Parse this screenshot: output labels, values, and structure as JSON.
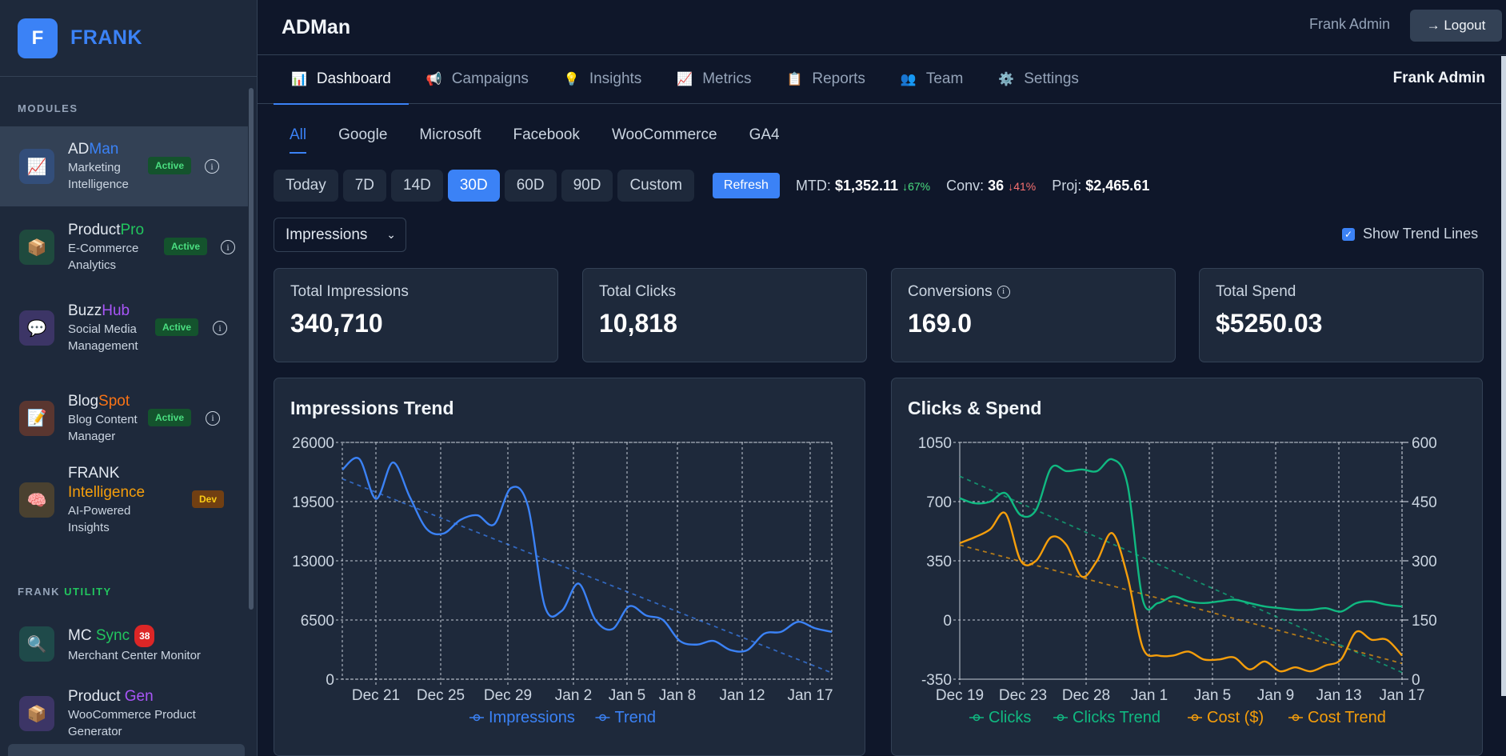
{
  "brand": {
    "logo_letter": "F",
    "name": "FRANK"
  },
  "sidebar": {
    "modules_label": "MODULES",
    "utility_label_a": "FRANK",
    "utility_label_b": "UTILITY",
    "modules": [
      {
        "title_a": "AD",
        "title_b": "Man",
        "title_b_color": "#3b82f6",
        "desc": "Marketing Intelligence",
        "badge": "Active",
        "icon": "chart-icon",
        "glyph": "📈",
        "icon_bg": "#334e7a"
      },
      {
        "title_a": "Product",
        "title_b": "Pro",
        "title_b_color": "#22c55e",
        "desc": "E-Commerce Analytics",
        "badge": "Active",
        "icon": "package-icon",
        "glyph": "📦",
        "icon_bg": "#1f4a3e"
      },
      {
        "title_a": "Buzz",
        "title_b": "Hub",
        "title_b_color": "#a855f7",
        "desc": "Social Media Management",
        "badge": "Active",
        "icon": "speech-bubble-icon",
        "glyph": "💬",
        "icon_bg": "#3c3566"
      },
      {
        "title_a": "Blog",
        "title_b": "Spot",
        "title_b_color": "#f97316",
        "desc": "Blog Content Manager",
        "badge": "Active",
        "icon": "document-icon",
        "glyph": "📝",
        "icon_bg": "#5a3630"
      },
      {
        "title_a": "FRANK",
        "title_b": "Intelligence",
        "title_b_color": "#f59e0b",
        "desc": "AI-Powered Insights",
        "badge": "Dev",
        "icon": "brain-icon",
        "glyph": "🧠",
        "icon_bg": "#4a4130"
      }
    ],
    "utilities": [
      {
        "title_a": "MC ",
        "title_b": "Sync",
        "title_b_color": "#22c55e",
        "count": "38",
        "desc": "Merchant Center Monitor",
        "icon": "magnifier-icon",
        "glyph": "🔍",
        "icon_bg": "#1f4a4a"
      },
      {
        "title_a": "Product ",
        "title_b": "Gen",
        "title_b_color": "#a855f7",
        "desc": "WooCommerce Product Generator",
        "icon": "package-icon",
        "glyph": "📦",
        "icon_bg": "#3c3566"
      }
    ]
  },
  "header": {
    "title": "ADMan",
    "user": "Frank Admin",
    "logout_label": "→ Logout"
  },
  "nav": {
    "tabs": [
      {
        "label": "Dashboard",
        "glyph": "📊"
      },
      {
        "label": "Campaigns",
        "glyph": "📢"
      },
      {
        "label": "Insights",
        "glyph": "💡"
      },
      {
        "label": "Metrics",
        "glyph": "📈"
      },
      {
        "label": "Reports",
        "glyph": "📋"
      },
      {
        "label": "Team",
        "glyph": "👥"
      },
      {
        "label": "Settings",
        "glyph": "⚙️"
      }
    ],
    "user": "Frank Admin"
  },
  "sources": [
    "All",
    "Google",
    "Microsoft",
    "Facebook",
    "WooCommerce",
    "GA4"
  ],
  "ranges": [
    "Today",
    "7D",
    "14D",
    "30D",
    "60D",
    "90D",
    "Custom"
  ],
  "selected_range": "30D",
  "refresh_label": "Refresh",
  "stats": {
    "mtd_label": "MTD:",
    "mtd_value": "$1,352.11",
    "mtd_change": "↓67%",
    "conv_label": "Conv:",
    "conv_value": "36",
    "conv_change": "↓41%",
    "proj_label": "Proj:",
    "proj_value": "$2,465.61"
  },
  "metric_select": {
    "value": "Impressions"
  },
  "trend_toggle": {
    "label": "Show Trend Lines",
    "checked": true
  },
  "cards": [
    {
      "label": "Total Impressions",
      "value": "340,710"
    },
    {
      "label": "Total Clicks",
      "value": "10,818"
    },
    {
      "label": "Conversions",
      "value": "169.0"
    },
    {
      "label": "Total Spend",
      "value": "$5250.03"
    }
  ],
  "chart_data": [
    {
      "type": "line",
      "title": "Impressions Trend",
      "x_tick_labels": [
        "Dec 21",
        "Dec 25",
        "Dec 29",
        "Jan 2",
        "Jan 5",
        "Jan 8",
        "Jan 12",
        "Jan 17"
      ],
      "ylim": [
        0,
        26000
      ],
      "y_ticks": [
        0,
        6500,
        13000,
        19500,
        26000
      ],
      "y_tick_labels": [
        "0",
        "6500",
        "13000",
        "19500",
        "26000"
      ],
      "grid": true,
      "legend": "bottom",
      "series": [
        {
          "name": "Impressions",
          "color": "#3b82f6",
          "dashed": false,
          "values": [
            23000,
            24200,
            19800,
            23800,
            20000,
            16500,
            16000,
            17500,
            18000,
            17000,
            21000,
            19000,
            8000,
            7500,
            10500,
            6500,
            5500,
            8000,
            7000,
            6500,
            4200,
            3800,
            4200,
            3200,
            3200,
            5000,
            5200,
            6300,
            5600,
            5200
          ]
        },
        {
          "name": "Trend",
          "color": "#3b82f6",
          "dashed": true,
          "values": [
            22000,
            21250,
            20500,
            19750,
            19000,
            18250,
            17500,
            16750,
            16000,
            15250,
            14500,
            13750,
            13000,
            12250,
            11500,
            10750,
            10000,
            9250,
            8500,
            7750,
            7000,
            6250,
            5500,
            4750,
            4000,
            3250,
            2500,
            1750,
            1000,
            700
          ]
        }
      ]
    },
    {
      "type": "line",
      "title": "Clicks & Spend",
      "x_tick_labels": [
        "Dec 19",
        "Dec 23",
        "Dec 28",
        "Jan 1",
        "Jan 5",
        "Jan 9",
        "Jan 13",
        "Jan 17"
      ],
      "ylim_left": [
        -350,
        1050
      ],
      "y_ticks_left": [
        -350,
        0,
        350,
        700,
        1050
      ],
      "y_tick_labels_left": [
        "-350",
        "0",
        "350",
        "700",
        "1050"
      ],
      "ylim_right": [
        0,
        600
      ],
      "y_ticks_right": [
        0,
        150,
        300,
        450,
        600
      ],
      "y_tick_labels_right": [
        "0",
        "150",
        "300",
        "450",
        "600"
      ],
      "grid": true,
      "legend": "bottom",
      "series": [
        {
          "name": "Clicks",
          "axis": "left",
          "color": "#10b981",
          "dashed": false,
          "values": [
            720,
            690,
            700,
            750,
            620,
            650,
            900,
            880,
            890,
            880,
            950,
            800,
            120,
            100,
            140,
            110,
            100,
            110,
            120,
            100,
            80,
            70,
            60,
            60,
            70,
            50,
            100,
            110,
            90,
            80
          ]
        },
        {
          "name": "Clicks Trend",
          "axis": "left",
          "color": "#10b981",
          "dashed": true,
          "values": [
            850,
            810,
            770,
            730,
            690,
            650,
            610,
            570,
            530,
            490,
            450,
            410,
            370,
            330,
            290,
            250,
            210,
            170,
            130,
            90,
            50,
            10,
            -30,
            -70,
            -110,
            -150,
            -190,
            -230,
            -270,
            -310
          ]
        },
        {
          "name": "Cost ($)",
          "axis": "right",
          "color": "#f59e0b",
          "dashed": false,
          "values": [
            345,
            360,
            380,
            420,
            300,
            300,
            360,
            340,
            260,
            300,
            370,
            260,
            80,
            60,
            60,
            70,
            50,
            50,
            55,
            25,
            45,
            20,
            30,
            20,
            35,
            50,
            120,
            100,
            100,
            60
          ]
        },
        {
          "name": "Cost Trend",
          "axis": "right",
          "color": "#f59e0b",
          "dashed": true,
          "values": [
            340,
            330,
            320,
            310,
            300,
            290,
            280,
            270,
            260,
            250,
            240,
            230,
            220,
            210,
            200,
            190,
            180,
            170,
            160,
            150,
            140,
            130,
            120,
            110,
            100,
            90,
            80,
            70,
            60,
            40
          ]
        }
      ]
    }
  ]
}
